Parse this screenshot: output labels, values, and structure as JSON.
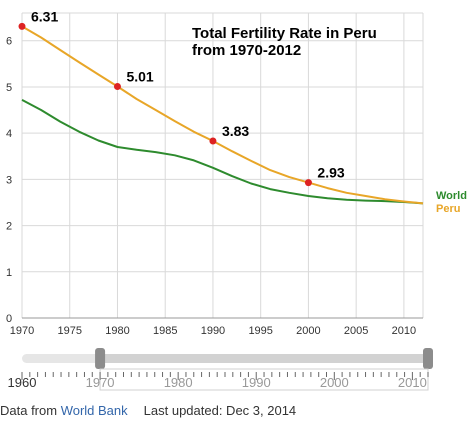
{
  "chart_data": {
    "type": "line",
    "title_lines": [
      "Total Fertility Rate in Peru",
      "from 1970-2012"
    ],
    "x_ticks": [
      1970,
      1975,
      1980,
      1985,
      1990,
      1995,
      2000,
      2005,
      2010
    ],
    "y_ticks": [
      0,
      1,
      2,
      3,
      4,
      5,
      6
    ],
    "xlim": [
      1970,
      2012
    ],
    "ylim": [
      0,
      6.6
    ],
    "grid": true,
    "legend": "right",
    "series": [
      {
        "name": "World",
        "color": "#2e8b2e",
        "x": [
          1970,
          1972,
          1974,
          1976,
          1978,
          1980,
          1982,
          1984,
          1986,
          1988,
          1990,
          1992,
          1994,
          1996,
          1998,
          2000,
          2002,
          2004,
          2006,
          2008,
          2010,
          2012
        ],
        "y": [
          4.72,
          4.5,
          4.25,
          4.03,
          3.84,
          3.7,
          3.64,
          3.59,
          3.52,
          3.41,
          3.25,
          3.07,
          2.91,
          2.79,
          2.71,
          2.64,
          2.59,
          2.56,
          2.54,
          2.53,
          2.51,
          2.48
        ]
      },
      {
        "name": "Peru",
        "color": "#e8a628",
        "x": [
          1970,
          1972,
          1974,
          1976,
          1978,
          1980,
          1982,
          1984,
          1986,
          1988,
          1990,
          1992,
          1994,
          1996,
          1998,
          2000,
          2002,
          2004,
          2006,
          2008,
          2010,
          2012
        ],
        "y": [
          6.31,
          6.07,
          5.8,
          5.53,
          5.27,
          5.01,
          4.74,
          4.5,
          4.26,
          4.03,
          3.83,
          3.61,
          3.4,
          3.2,
          3.05,
          2.93,
          2.81,
          2.71,
          2.64,
          2.57,
          2.52,
          2.48
        ]
      }
    ],
    "annotations": [
      {
        "x": 1970,
        "y": 6.31,
        "label": "6.31"
      },
      {
        "x": 1980,
        "y": 5.01,
        "label": "5.01"
      },
      {
        "x": 1990,
        "y": 3.83,
        "label": "3.83"
      },
      {
        "x": 2000,
        "y": 2.93,
        "label": "2.93"
      }
    ],
    "marker_color": "#dd2222"
  },
  "timeline": {
    "range": [
      1960,
      2012
    ],
    "selected": [
      1970,
      2012
    ],
    "labels": [
      1960,
      1970,
      1980,
      1990,
      2000,
      2010
    ]
  },
  "footer": {
    "prefix": "Data from ",
    "source": "World Bank",
    "updated": "Last updated: Dec 3, 2014"
  }
}
